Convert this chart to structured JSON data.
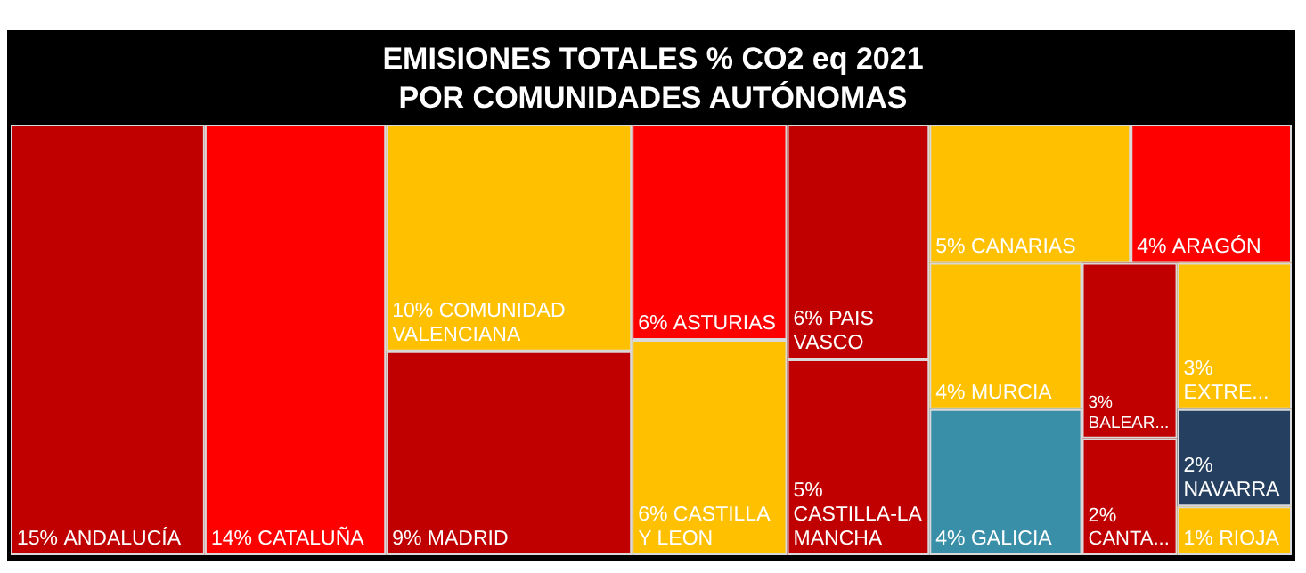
{
  "chart_data": {
    "type": "other",
    "title": "EMISIONES TOTALES % CO2 eq 2021",
    "subtitle": "POR COMUNIDADES AUTÓNOMAS",
    "categories": [
      "ANDALUCÍA",
      "CATALUÑA",
      "COMUNIDAD VALENCIANA",
      "MADRID",
      "ASTURIAS",
      "CASTILLA Y LEON",
      "PAIS VASCO",
      "CASTILLA-LA MANCHA",
      "CANARIAS",
      "ARAGÓN",
      "MURCIA",
      "GALICIA",
      "BALEAR...",
      "EXTRE...",
      "CANTA...",
      "NAVARRA",
      "RIOJA"
    ],
    "values": [
      15,
      14,
      10,
      9,
      6,
      6,
      6,
      5,
      5,
      4,
      4,
      4,
      3,
      3,
      2,
      2,
      1
    ],
    "value_labels": [
      "15%",
      "14%",
      "10%",
      "9%",
      "6%",
      "6%",
      "6%",
      "5%",
      "5%",
      "4%",
      "4%",
      "4%",
      "3%",
      "3%",
      "2%",
      "2%",
      "1%"
    ],
    "colors": [
      "#c00000",
      "#ff0000",
      "#ffc000",
      "#c00000",
      "#ff0000",
      "#ffc000",
      "#c00000",
      "#c00000",
      "#ffc000",
      "#ff0000",
      "#ffc000",
      "#3a8fa8",
      "#c00000",
      "#ffc000",
      "#c00000",
      "#243f60",
      "#ffc000"
    ]
  }
}
